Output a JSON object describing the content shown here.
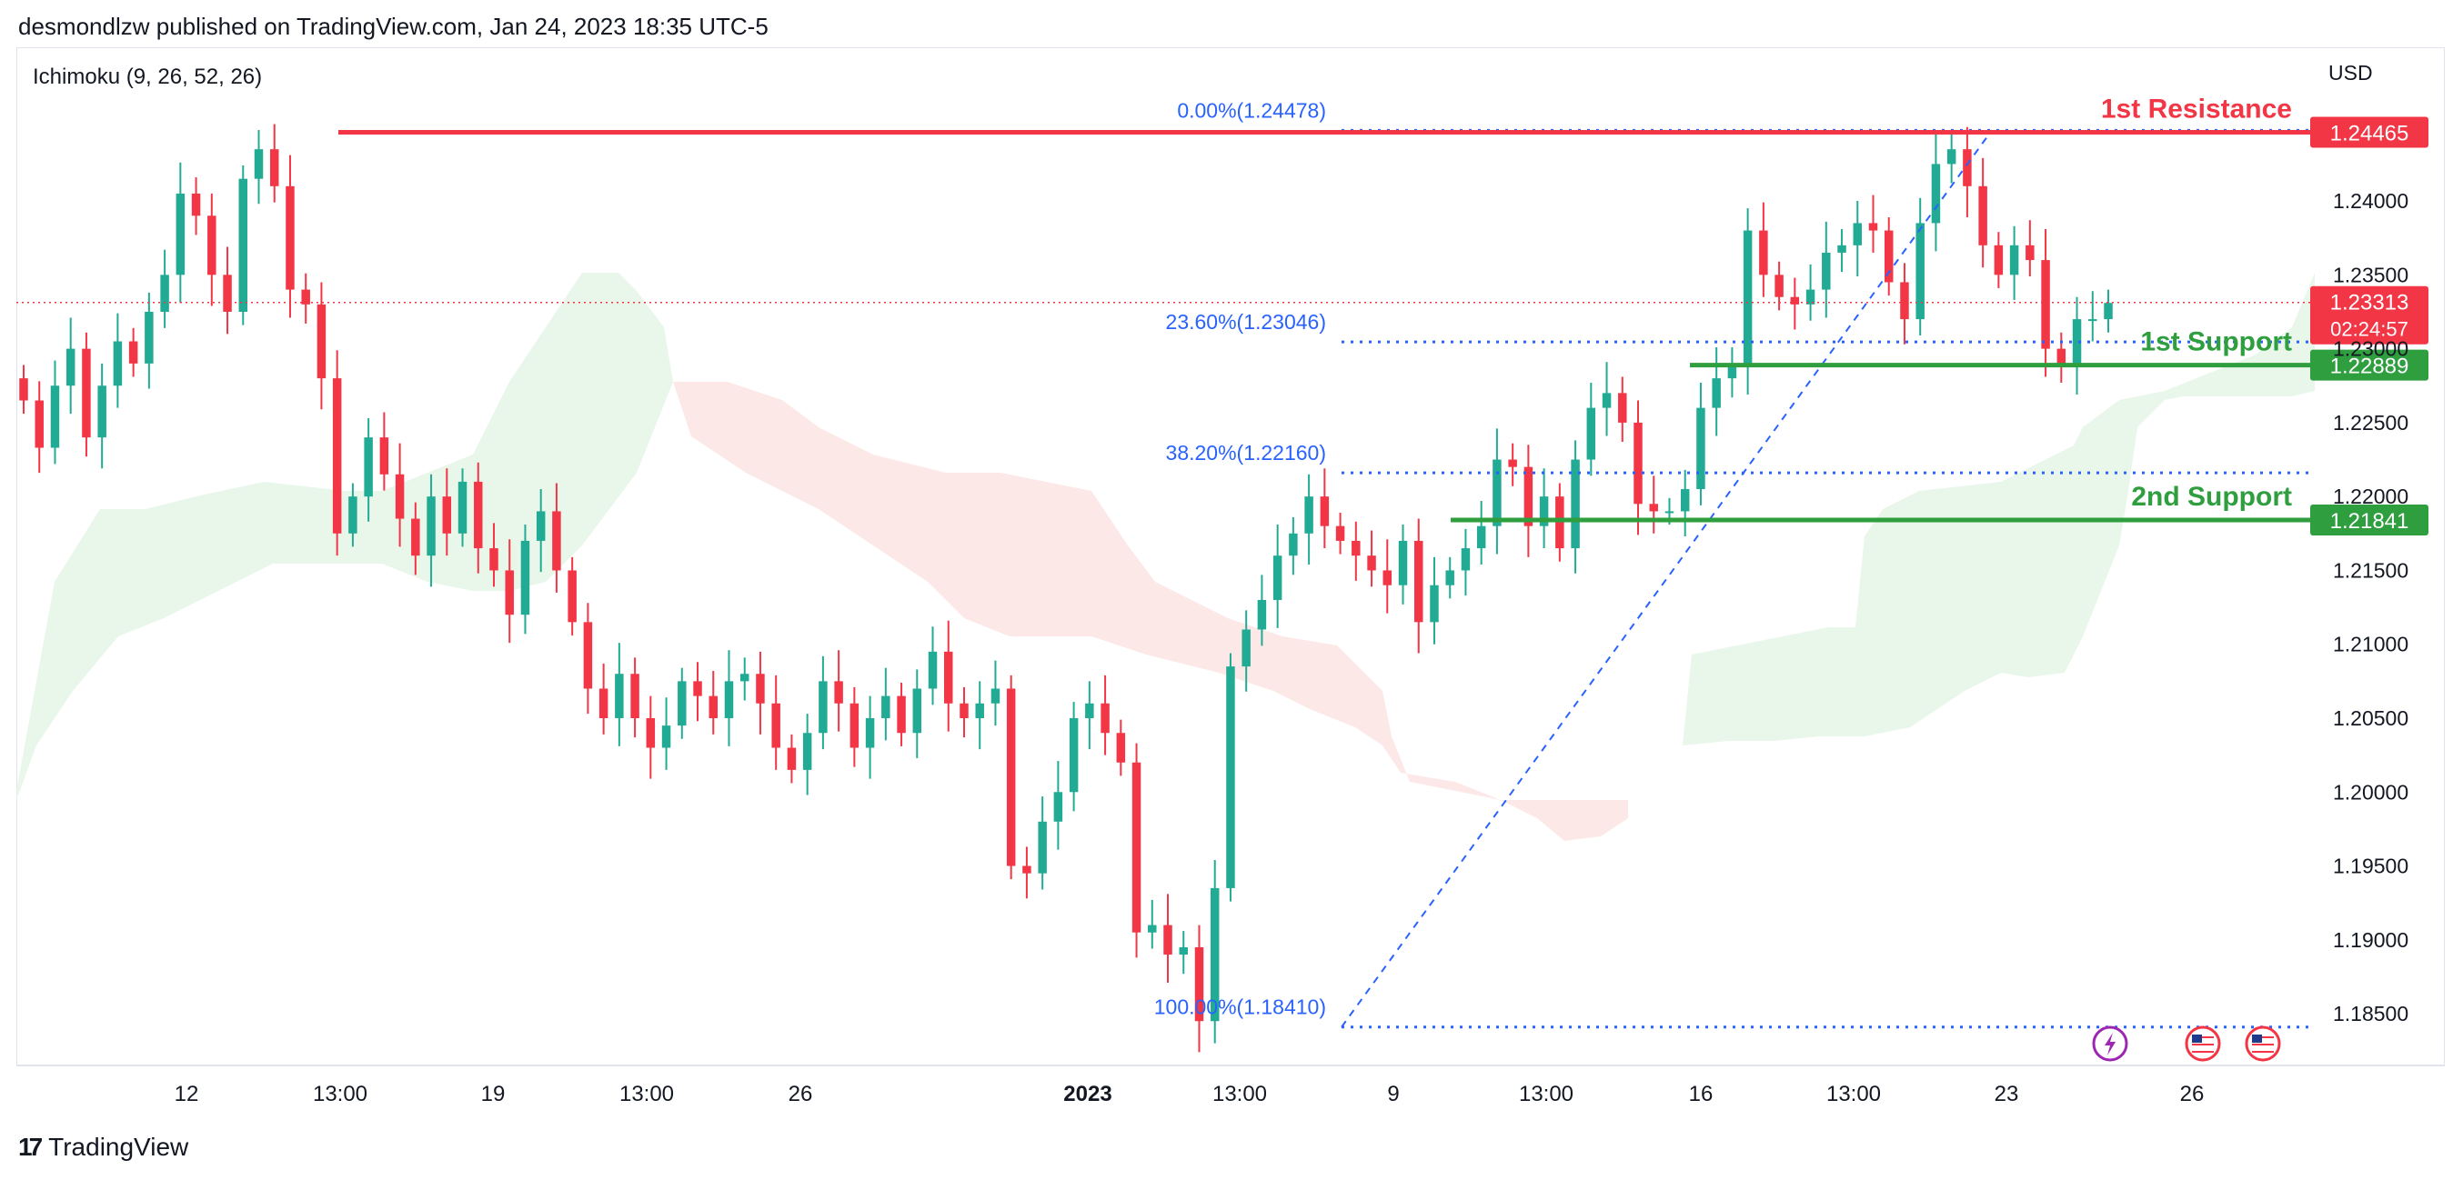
{
  "header": {
    "publisher": "desmondlzw published on TradingView.com, Jan 24, 2023 18:35 UTC-5"
  },
  "footer": {
    "brand": "TradingView"
  },
  "colors": {
    "up": "#26a69a",
    "up_body": "#22ab94",
    "down": "#f23645",
    "resistance": "#f23645",
    "support": "#2e9e3f",
    "fib": "#2962ff",
    "cloud_up": "#e8f5e9",
    "cloud_down": "#fde7e7"
  },
  "chart_data": {
    "type": "candlestick",
    "symbol_panel": "Ichimoku (9, 26, 52, 26)",
    "currency": "USD",
    "y_axis": {
      "ylim": [
        1.1815,
        1.2504
      ],
      "ticks": [
        "1.24000",
        "1.23500",
        "1.23000",
        "1.22500",
        "1.22000",
        "1.21500",
        "1.21000",
        "1.20500",
        "1.20000",
        "1.19500",
        "1.19000",
        "1.18500"
      ]
    },
    "x_axis": {
      "ticks": [
        "12",
        "13:00",
        "19",
        "13:00",
        "26",
        "2023",
        "13:00",
        "9",
        "13:00",
        "16",
        "13:00",
        "23",
        "26"
      ]
    },
    "horizontal_levels": [
      {
        "name": "1st Resistance",
        "price": 1.24465,
        "price_label": "1.24465",
        "color": "resistance"
      },
      {
        "name": "1st Support",
        "price": 1.22889,
        "price_label": "1.22889",
        "color": "support"
      },
      {
        "name": "2nd Support",
        "price": 1.21841,
        "price_label": "1.21841",
        "color": "support"
      }
    ],
    "current_price": {
      "price": 1.23313,
      "label": "1.23313",
      "countdown": "02:24:57"
    },
    "fibonacci": [
      {
        "label": "0.00%(1.24478)",
        "price": 1.24478
      },
      {
        "label": "23.60%(1.23046)",
        "price": 1.23046
      },
      {
        "label": "38.20%(1.22160)",
        "price": 1.2216
      },
      {
        "label": "100.00%(1.18410)",
        "price": 1.1841
      }
    ],
    "close_path": [
      1.2265,
      1.2233,
      1.2275,
      1.23,
      1.224,
      1.2275,
      1.2305,
      1.229,
      1.2325,
      1.235,
      1.2405,
      1.239,
      1.235,
      1.2325,
      1.2415,
      1.2435,
      1.241,
      1.234,
      1.233,
      1.228,
      1.2175,
      1.22,
      1.224,
      1.2215,
      1.2185,
      1.216,
      1.22,
      1.2175,
      1.221,
      1.2165,
      1.215,
      1.212,
      1.217,
      1.219,
      1.215,
      1.2115,
      1.207,
      1.205,
      1.208,
      1.205,
      1.203,
      1.2045,
      1.2075,
      1.2065,
      1.205,
      1.2075,
      1.208,
      1.206,
      1.203,
      1.2015,
      1.204,
      1.2075,
      1.206,
      1.203,
      1.205,
      1.2065,
      1.204,
      1.207,
      1.2095,
      1.206,
      1.205,
      1.206,
      1.207,
      1.195,
      1.1945,
      1.198,
      1.2,
      1.205,
      1.206,
      1.204,
      1.202,
      1.1905,
      1.191,
      1.189,
      1.1895,
      1.1845,
      1.1935,
      1.2085,
      1.211,
      1.213,
      1.216,
      1.2175,
      1.22,
      1.218,
      1.217,
      1.216,
      1.215,
      1.214,
      1.217,
      1.2115,
      1.214,
      1.215,
      1.2165,
      1.218,
      1.2225,
      1.222,
      1.218,
      1.22,
      1.2165,
      1.2225,
      1.226,
      1.227,
      1.225,
      1.2195,
      1.219,
      1.219,
      1.2205,
      1.226,
      1.228,
      1.229,
      1.238,
      1.235,
      1.2335,
      1.233,
      1.234,
      1.2365,
      1.237,
      1.2385,
      1.238,
      1.2345,
      1.232,
      1.2385,
      1.2425,
      1.2435,
      1.241,
      1.237,
      1.235,
      1.237,
      1.236,
      1.23,
      1.229,
      1.232,
      1.232,
      1.2331
    ]
  }
}
